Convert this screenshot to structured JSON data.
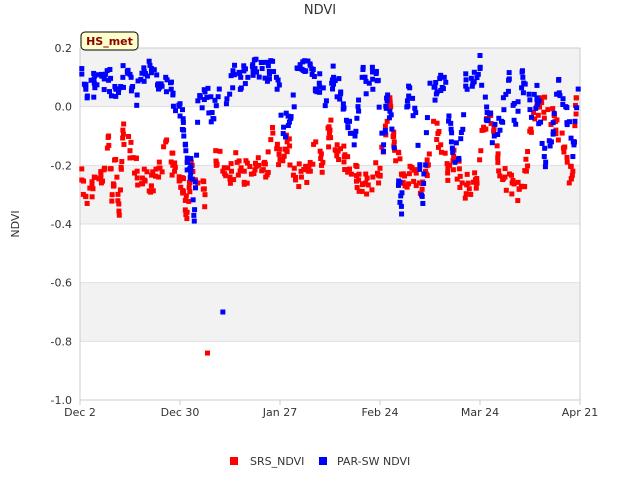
{
  "chart_data": {
    "type": "scatter",
    "title": "NDVI",
    "badge": "HS_met",
    "xlabel": "",
    "ylabel": "NDVI",
    "ylim": [
      -1.0,
      0.2
    ],
    "yticks": [
      -1.0,
      -0.8,
      -0.6,
      -0.4,
      -0.2,
      0.0,
      0.2
    ],
    "ytick_labels": [
      "-1.0",
      "-0.8",
      "-0.6",
      "-0.4",
      "-0.2",
      "0.0",
      "0.2"
    ],
    "x_range_days": [
      0,
      140
    ],
    "xticks": [
      {
        "label": "Dec 2",
        "day": 0
      },
      {
        "label": "Dec 30",
        "day": 28
      },
      {
        "label": "Jan 27",
        "day": 56
      },
      {
        "label": "Feb 24",
        "day": 84
      },
      {
        "label": "Mar 24",
        "day": 112
      },
      {
        "label": "Apr 21",
        "day": 140
      }
    ],
    "bands": [
      [
        -0.6,
        -0.8
      ],
      [
        -0.2,
        -0.4
      ],
      [
        0.2,
        0.0
      ]
    ],
    "series": [
      {
        "name": "SRS_NDVI",
        "color": "#ff0000",
        "anchors": [
          [
            0.5,
            -0.25
          ],
          [
            2,
            -0.33
          ],
          [
            4,
            -0.24
          ],
          [
            6,
            -0.26
          ],
          [
            8,
            -0.1
          ],
          [
            9,
            -0.3
          ],
          [
            10,
            -0.18
          ],
          [
            11,
            -0.37
          ],
          [
            12,
            -0.08
          ],
          [
            14,
            -0.15
          ],
          [
            16,
            -0.22
          ],
          [
            18,
            -0.25
          ],
          [
            20,
            -0.27
          ],
          [
            22,
            -0.24
          ],
          [
            24,
            -0.12
          ],
          [
            26,
            -0.2
          ],
          [
            28,
            -0.25
          ],
          [
            29,
            -0.29
          ],
          [
            30,
            -0.36
          ],
          [
            31,
            -0.21
          ],
          [
            33,
            -0.26
          ],
          [
            35,
            -0.3
          ],
          [
            35.7,
            -0.84
          ],
          [
            38,
            -0.15
          ],
          [
            40,
            -0.22
          ],
          [
            42,
            -0.24
          ],
          [
            44,
            -0.19
          ],
          [
            46,
            -0.22
          ],
          [
            48,
            -0.23
          ],
          [
            50,
            -0.2
          ],
          [
            52,
            -0.24
          ],
          [
            54,
            -0.09
          ],
          [
            56,
            -0.18
          ],
          [
            58,
            -0.12
          ],
          [
            60,
            -0.21
          ],
          [
            62,
            -0.24
          ],
          [
            64,
            -0.22
          ],
          [
            66,
            -0.12
          ],
          [
            68,
            -0.19
          ],
          [
            70,
            -0.08
          ],
          [
            72,
            -0.13
          ],
          [
            74,
            -0.17
          ],
          [
            76,
            -0.23
          ],
          [
            78,
            -0.25
          ],
          [
            80,
            -0.26
          ],
          [
            82,
            -0.24
          ],
          [
            84,
            -0.21
          ],
          [
            86,
            -0.05
          ],
          [
            87,
            0.0
          ],
          [
            88,
            -0.12
          ],
          [
            90,
            -0.23
          ],
          [
            91,
            -0.27
          ],
          [
            93,
            -0.21
          ],
          [
            95,
            -0.26
          ],
          [
            97,
            -0.23
          ],
          [
            99,
            -0.05
          ],
          [
            101,
            -0.13
          ],
          [
            103,
            -0.21
          ],
          [
            105,
            -0.18
          ],
          [
            107,
            -0.26
          ],
          [
            109,
            -0.28
          ],
          [
            111,
            -0.26
          ],
          [
            113,
            -0.07
          ],
          [
            115,
            -0.03
          ],
          [
            117,
            -0.19
          ],
          [
            119,
            -0.24
          ],
          [
            121,
            -0.26
          ],
          [
            123,
            -0.28
          ],
          [
            125,
            -0.22
          ],
          [
            127,
            -0.02
          ],
          [
            129,
            0.02
          ],
          [
            131,
            -0.01
          ],
          [
            133,
            -0.05
          ],
          [
            135,
            -0.09
          ],
          [
            137,
            -0.26
          ],
          [
            138,
            -0.22
          ],
          [
            139,
            0.03
          ]
        ]
      },
      {
        "name": "PAR-SW NDVI",
        "color": "#0000ff",
        "anchors": [
          [
            0.5,
            0.13
          ],
          [
            2,
            0.03
          ],
          [
            4,
            0.08
          ],
          [
            6,
            0.11
          ],
          [
            8,
            0.09
          ],
          [
            10,
            0.06
          ],
          [
            12,
            0.1
          ],
          [
            14,
            0.11
          ],
          [
            16,
            0.04
          ],
          [
            18,
            0.12
          ],
          [
            20,
            0.13
          ],
          [
            22,
            0.06
          ],
          [
            24,
            0.1
          ],
          [
            26,
            0.04
          ],
          [
            28,
            0.01
          ],
          [
            29,
            -0.08
          ],
          [
            30,
            -0.19
          ],
          [
            31,
            -0.2
          ],
          [
            32,
            -0.39
          ],
          [
            33,
            0.02
          ],
          [
            35,
            0.05
          ],
          [
            37,
            -0.02
          ],
          [
            39,
            0.06
          ],
          [
            40,
            -0.7
          ],
          [
            41,
            0.01
          ],
          [
            43,
            0.11
          ],
          [
            45,
            0.1
          ],
          [
            47,
            0.1
          ],
          [
            49,
            0.13
          ],
          [
            51,
            0.13
          ],
          [
            53,
            0.12
          ],
          [
            55,
            0.1
          ],
          [
            57,
            -0.07
          ],
          [
            59,
            -0.04
          ],
          [
            61,
            0.13
          ],
          [
            63,
            0.12
          ],
          [
            65,
            0.11
          ],
          [
            67,
            0.08
          ],
          [
            69,
            0.02
          ],
          [
            71,
            0.1
          ],
          [
            73,
            0.05
          ],
          [
            75,
            -0.07
          ],
          [
            77,
            -0.1
          ],
          [
            79,
            0.1
          ],
          [
            81,
            0.08
          ],
          [
            83,
            0.12
          ],
          [
            85,
            -0.13
          ],
          [
            86,
            0.02
          ],
          [
            88,
            -0.14
          ],
          [
            90,
            -0.34
          ],
          [
            92,
            0.07
          ],
          [
            94,
            -0.02
          ],
          [
            96,
            -0.33
          ],
          [
            98,
            0.08
          ],
          [
            100,
            0.05
          ],
          [
            102,
            0.1
          ],
          [
            104,
            -0.12
          ],
          [
            106,
            -0.18
          ],
          [
            108,
            0.07
          ],
          [
            110,
            0.08
          ],
          [
            112,
            0.13
          ],
          [
            114,
            -0.02
          ],
          [
            116,
            -0.1
          ],
          [
            118,
            -0.05
          ],
          [
            120,
            0.09
          ],
          [
            122,
            -0.06
          ],
          [
            124,
            0.1
          ],
          [
            126,
            -0.01
          ],
          [
            128,
            0.03
          ],
          [
            130,
            -0.17
          ],
          [
            132,
            -0.12
          ],
          [
            134,
            0.09
          ],
          [
            136,
            0.0
          ],
          [
            138,
            -0.17
          ],
          [
            139.5,
            0.06
          ]
        ]
      }
    ],
    "legend": [
      {
        "label": "SRS_NDVI",
        "color": "#ff0000"
      },
      {
        "label": "PAR-SW NDVI",
        "color": "#0000ff"
      }
    ],
    "legend_position": "bottom-center"
  }
}
